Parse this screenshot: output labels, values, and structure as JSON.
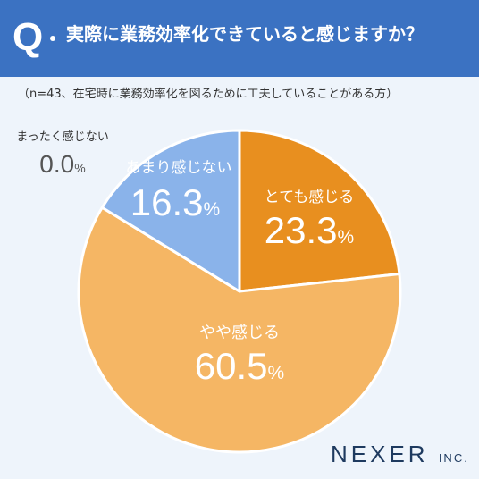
{
  "header": {
    "q_mark": "Q",
    "question": "実際に業務効率化できていると感じますか？"
  },
  "subtitle": "（n=43、在宅時に業務効率化を図るために工夫していることがある方）",
  "chart_data": {
    "type": "pie",
    "n": 43,
    "slices": [
      {
        "label": "とても感じる",
        "value": 23.3,
        "display": "23.3",
        "color": "#e88f1f",
        "text_color": "#ffffff"
      },
      {
        "label": "やや感じる",
        "value": 60.5,
        "display": "60.5",
        "color": "#f5b664",
        "text_color": "#ffffff"
      },
      {
        "label": "あまり感じない",
        "value": 16.3,
        "display": "16.3",
        "color": "#8ab3ea",
        "text_color": "#ffffff"
      },
      {
        "label": "まったく感じない",
        "value": 0.0,
        "display": "0.0",
        "color": "#aaaaaa",
        "text_color": "#555555"
      }
    ],
    "unit": "%"
  },
  "logo": {
    "main": "NEXER",
    "suffix": "INC."
  }
}
